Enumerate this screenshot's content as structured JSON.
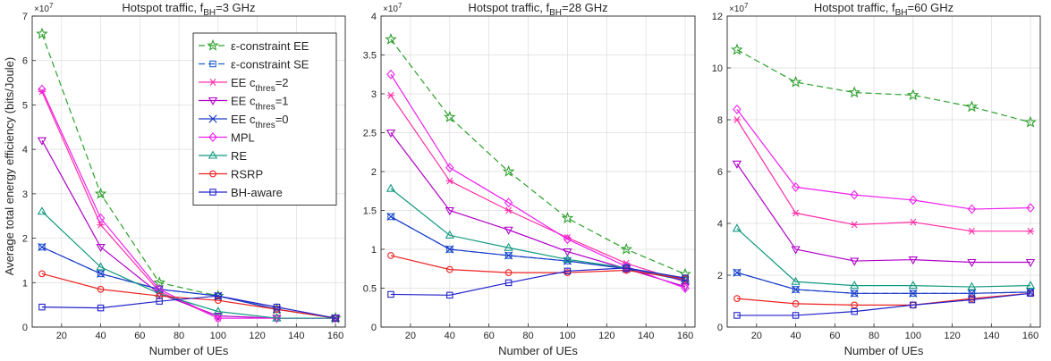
{
  "figure": {
    "ylabel": "Average total energy efficiency (bits/Joule)"
  },
  "legend": {
    "entries": [
      {
        "key": "eps_ee",
        "pre": "ε-constraint  EE",
        "sub": "",
        "post": ""
      },
      {
        "key": "eps_se",
        "pre": "ε-constraint  SE",
        "sub": "",
        "post": ""
      },
      {
        "key": "ee_c2",
        "pre": "EE c",
        "sub": "thres",
        "post": "=2"
      },
      {
        "key": "ee_c1",
        "pre": "EE c",
        "sub": "thres",
        "post": "=1"
      },
      {
        "key": "ee_c0",
        "pre": "EE c",
        "sub": "thres",
        "post": "=0"
      },
      {
        "key": "mpl",
        "pre": "MPL",
        "sub": "",
        "post": ""
      },
      {
        "key": "re",
        "pre": "RE",
        "sub": "",
        "post": ""
      },
      {
        "key": "rsrp",
        "pre": "RSRP",
        "sub": "",
        "post": ""
      },
      {
        "key": "bh",
        "pre": "BH-aware",
        "sub": "",
        "post": ""
      }
    ]
  },
  "series_styles": {
    "eps_ee": {
      "color": "#2ca02c",
      "marker": "star",
      "dash": "7,4"
    },
    "eps_se": {
      "color": "#1f5fd6",
      "marker": "square",
      "dash": "7,4"
    },
    "ee_c2": {
      "color": "#ff2fa8",
      "marker": "asterisk",
      "dash": ""
    },
    "ee_c1": {
      "color": "#b000c8",
      "marker": "tri-down",
      "dash": ""
    },
    "ee_c0": {
      "color": "#1a3ac8",
      "marker": "x",
      "dash": ""
    },
    "mpl": {
      "color": "#ee22ee",
      "marker": "diamond",
      "dash": ""
    },
    "re": {
      "color": "#119980",
      "marker": "tri-up",
      "dash": ""
    },
    "rsrp": {
      "color": "#ee2222",
      "marker": "circle",
      "dash": ""
    },
    "bh": {
      "color": "#2222cc",
      "marker": "square",
      "dash": ""
    }
  },
  "chart_data": [
    {
      "type": "line",
      "title": {
        "pre": "Hotspot traffic, f",
        "sub": "BH",
        "post": "=3 GHz"
      },
      "xlabel": "Number of UEs",
      "x": [
        10,
        40,
        70,
        100,
        130,
        160
      ],
      "xlim": [
        5,
        165
      ],
      "xticks": [
        "20",
        "40",
        "60",
        "80",
        "100",
        "120",
        "140",
        "160"
      ],
      "ylim": [
        0,
        7
      ],
      "yticks": [
        "0",
        "1",
        "2",
        "3",
        "4",
        "5",
        "6",
        "7"
      ],
      "exponent": "×10",
      "exponent_power": "7",
      "grid": true,
      "legend_position": "top-right",
      "series": [
        {
          "key": "eps_ee",
          "values": [
            6.6,
            3.0,
            1.0,
            0.7,
            0.4,
            0.2
          ]
        },
        {
          "key": "eps_se",
          "values": [
            1.8,
            1.2,
            0.85,
            0.7,
            0.4,
            0.2
          ]
        },
        {
          "key": "ee_c2",
          "values": [
            5.3,
            2.3,
            0.8,
            0.2,
            0.2,
            0.2
          ]
        },
        {
          "key": "ee_c1",
          "values": [
            4.2,
            1.8,
            0.75,
            0.25,
            0.2,
            0.2
          ]
        },
        {
          "key": "ee_c0",
          "values": [
            1.8,
            1.2,
            0.85,
            0.7,
            0.4,
            0.2
          ]
        },
        {
          "key": "mpl",
          "values": [
            5.35,
            2.45,
            0.85,
            0.2,
            0.2,
            0.2
          ]
        },
        {
          "key": "re",
          "values": [
            2.6,
            1.35,
            0.75,
            0.35,
            0.2,
            0.2
          ]
        },
        {
          "key": "rsrp",
          "values": [
            1.2,
            0.85,
            0.7,
            0.6,
            0.4,
            0.2
          ]
        },
        {
          "key": "bh",
          "values": [
            0.45,
            0.43,
            0.58,
            0.7,
            0.45,
            0.2
          ]
        }
      ]
    },
    {
      "type": "line",
      "title": {
        "pre": "Hotspot traffic, f",
        "sub": "BH",
        "post": "=28 GHz"
      },
      "xlabel": "Number of UEs",
      "x": [
        10,
        40,
        70,
        100,
        130,
        160
      ],
      "xlim": [
        5,
        165
      ],
      "xticks": [
        "20",
        "40",
        "60",
        "80",
        "100",
        "120",
        "140",
        "160"
      ],
      "ylim": [
        0,
        4
      ],
      "yticks": [
        "0",
        "0.5",
        "1",
        "1.5",
        "2",
        "2.5",
        "3",
        "3.5",
        "4"
      ],
      "exponent": "×10",
      "exponent_power": "7",
      "grid": true,
      "series": [
        {
          "key": "eps_ee",
          "values": [
            3.7,
            2.7,
            2.0,
            1.4,
            1.0,
            0.68
          ]
        },
        {
          "key": "eps_se",
          "values": [
            1.42,
            1.0,
            0.92,
            0.85,
            0.75,
            0.6
          ]
        },
        {
          "key": "ee_c2",
          "values": [
            2.98,
            1.88,
            1.5,
            1.15,
            0.82,
            0.58
          ]
        },
        {
          "key": "ee_c1",
          "values": [
            2.5,
            1.5,
            1.25,
            0.97,
            0.75,
            0.52
          ]
        },
        {
          "key": "ee_c0",
          "values": [
            1.42,
            1.0,
            0.92,
            0.85,
            0.75,
            0.6
          ]
        },
        {
          "key": "mpl",
          "values": [
            3.25,
            2.05,
            1.6,
            1.13,
            0.78,
            0.5
          ]
        },
        {
          "key": "re",
          "values": [
            1.78,
            1.18,
            1.02,
            0.87,
            0.76,
            0.62
          ]
        },
        {
          "key": "rsrp",
          "values": [
            0.92,
            0.74,
            0.7,
            0.7,
            0.73,
            0.62
          ]
        },
        {
          "key": "bh",
          "values": [
            0.42,
            0.41,
            0.57,
            0.72,
            0.76,
            0.63
          ]
        }
      ]
    },
    {
      "type": "line",
      "title": {
        "pre": "Hotspot traffic, f",
        "sub": "BH",
        "post": "=60 GHz"
      },
      "xlabel": "Number of UEs",
      "x": [
        10,
        40,
        70,
        100,
        130,
        160
      ],
      "xlim": [
        5,
        165
      ],
      "xticks": [
        "20",
        "40",
        "60",
        "80",
        "100",
        "120",
        "140",
        "160"
      ],
      "ylim": [
        0,
        12
      ],
      "yticks": [
        "0",
        "2",
        "4",
        "6",
        "8",
        "10",
        "12"
      ],
      "exponent": "×10",
      "exponent_power": "7",
      "grid": true,
      "series": [
        {
          "key": "eps_ee",
          "values": [
            10.7,
            9.45,
            9.05,
            8.95,
            8.5,
            7.9
          ]
        },
        {
          "key": "eps_se",
          "values": [
            2.1,
            1.45,
            1.3,
            1.3,
            1.3,
            1.35
          ]
        },
        {
          "key": "ee_c2",
          "values": [
            8.0,
            4.4,
            3.95,
            4.05,
            3.7,
            3.7
          ]
        },
        {
          "key": "ee_c1",
          "values": [
            6.3,
            3.0,
            2.55,
            2.6,
            2.5,
            2.5
          ]
        },
        {
          "key": "ee_c0",
          "values": [
            2.1,
            1.45,
            1.3,
            1.3,
            1.3,
            1.35
          ]
        },
        {
          "key": "mpl",
          "values": [
            8.4,
            5.4,
            5.1,
            4.9,
            4.55,
            4.6
          ]
        },
        {
          "key": "re",
          "values": [
            3.8,
            1.75,
            1.6,
            1.6,
            1.55,
            1.6
          ]
        },
        {
          "key": "rsrp",
          "values": [
            1.1,
            0.9,
            0.85,
            0.85,
            1.1,
            1.3
          ]
        },
        {
          "key": "bh",
          "values": [
            0.45,
            0.45,
            0.6,
            0.85,
            1.05,
            1.3
          ]
        }
      ]
    }
  ]
}
